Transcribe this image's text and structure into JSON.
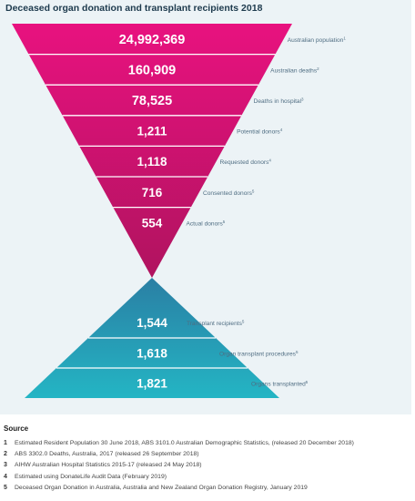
{
  "chart_data": {
    "type": "funnel",
    "title": "Deceased organ donation and transplant recipients 2018",
    "donation_stages": [
      {
        "value": 24992369,
        "value_label": "24,992,369",
        "label": "Australian population",
        "note": "1"
      },
      {
        "value": 160909,
        "value_label": "160,909",
        "label": "Australian deaths",
        "note": "2"
      },
      {
        "value": 78525,
        "value_label": "78,525",
        "label": "Deaths in hospital",
        "note": "3"
      },
      {
        "value": 1211,
        "value_label": "1,211",
        "label": "Potential donors",
        "note": "4"
      },
      {
        "value": 1118,
        "value_label": "1,118",
        "label": "Requested donors",
        "note": "4"
      },
      {
        "value": 716,
        "value_label": "716",
        "label": "Consented donors",
        "note": "5"
      },
      {
        "value": 554,
        "value_label": "554",
        "label": "Actual donors",
        "note": "5"
      }
    ],
    "transplant_stages": [
      {
        "value": 1544,
        "value_label": "1,544",
        "label": "Transplant recipients",
        "note": "5"
      },
      {
        "value": 1618,
        "value_label": "1,618",
        "label": "Organ transplant procedures",
        "note": "5"
      },
      {
        "value": 1821,
        "value_label": "1,821",
        "label": "Organs transplanted",
        "note": "5"
      }
    ]
  },
  "colors": {
    "donation_top": "#e8127f",
    "donation_bottom": "#b0135f",
    "transplant_top": "#2a7fa4",
    "transplant_bottom": "#24b5c4",
    "panel_background": "#ecf3f6"
  },
  "sources": {
    "heading": "Source",
    "items": [
      {
        "num": "1",
        "text": "Estimated Resident Population 30 June 2018, ABS 3101.0 Australian Demographic Statistics, (released 20 December 2018)"
      },
      {
        "num": "2",
        "text": "ABS 3302.0 Deaths, Australia, 2017 (released 26 September 2018)"
      },
      {
        "num": "3",
        "text": "AIHW Australian Hospital Statistics 2015-17 (released 24 May 2018)"
      },
      {
        "num": "4",
        "text": "Estimated using DonateLife Audit Data (February 2019)"
      },
      {
        "num": "5",
        "text": "Deceased Organ Donation in Australia, Australia and New Zealand Organ Donation Registry, January 2019"
      }
    ]
  }
}
